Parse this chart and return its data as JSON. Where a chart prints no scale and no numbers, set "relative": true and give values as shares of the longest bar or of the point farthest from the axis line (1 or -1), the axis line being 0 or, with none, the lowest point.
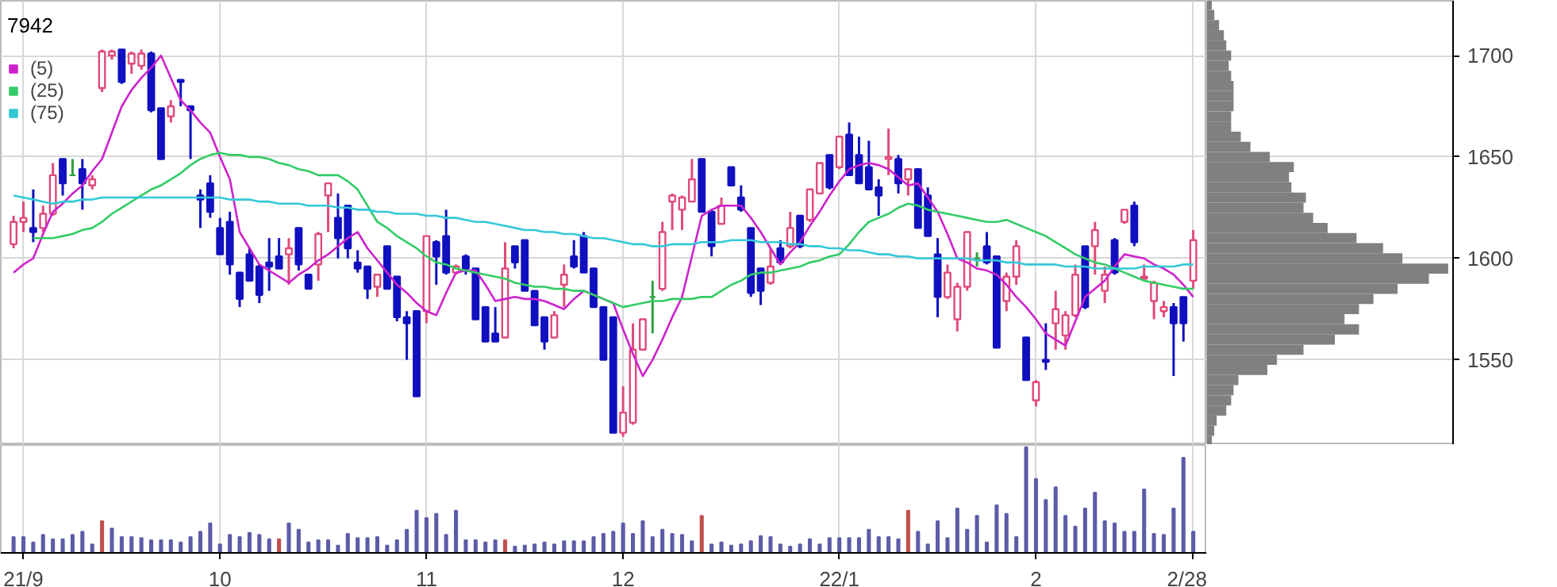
{
  "chart_data": [
    {
      "type": "candlestick",
      "title": "7942",
      "ylim": [
        1508,
        1727
      ],
      "grid": true,
      "tick_labels": false,
      "legend": "top left",
      "yticks": [
        1550,
        1600,
        1650,
        1700
      ],
      "categories": [
        null,
        null,
        null,
        null,
        null,
        null,
        null,
        null,
        null,
        null,
        null,
        null,
        null,
        null,
        null,
        null,
        null,
        null,
        null,
        null,
        null,
        null,
        null,
        null,
        null,
        null,
        null,
        null,
        null,
        null,
        null,
        null,
        null,
        null,
        null,
        null,
        null,
        null,
        null,
        null,
        null,
        null,
        null,
        null,
        null,
        null,
        null,
        null,
        null,
        null,
        null,
        null,
        null,
        null,
        null,
        null,
        null,
        null,
        null,
        null,
        null,
        null,
        null,
        null,
        null,
        null,
        null,
        null,
        null,
        null,
        null,
        null,
        null,
        null,
        null,
        null,
        null,
        null,
        null,
        null,
        null,
        null,
        null,
        null,
        null,
        null,
        null,
        null,
        null,
        null,
        null,
        null,
        null,
        null,
        null,
        null,
        null,
        null,
        null,
        null,
        null,
        null,
        null,
        null,
        null,
        null,
        null,
        null,
        null,
        null,
        null,
        null,
        null,
        null,
        null,
        null,
        null,
        null,
        null,
        null,
        null
      ],
      "ohlc": [
        [
          1607,
          1621,
          1605,
          1618
        ],
        [
          1618,
          1628,
          1613,
          1620
        ],
        [
          1615,
          1634,
          1608,
          1613
        ],
        [
          1615,
          1626,
          1613,
          1622
        ],
        [
          1622,
          1647,
          1621,
          1641
        ],
        [
          1649,
          1649,
          1631,
          1637
        ],
        [
          1641,
          1649,
          1641,
          1641
        ],
        [
          1644,
          1649,
          1624,
          1637
        ],
        [
          1636,
          1641,
          1634,
          1639
        ],
        [
          1684,
          1703,
          1682,
          1702
        ],
        [
          1700,
          1703,
          1698,
          1702
        ],
        [
          1703,
          1703,
          1686,
          1687
        ],
        [
          1696,
          1702,
          1691,
          1701
        ],
        [
          1695,
          1703,
          1693,
          1701
        ],
        [
          1701,
          1702,
          1672,
          1673
        ],
        [
          1674,
          1674,
          1649,
          1649
        ],
        [
          1670,
          1678,
          1667,
          1675
        ],
        [
          1688,
          1688,
          1675,
          1687
        ],
        [
          1675,
          1675,
          1649,
          1673
        ],
        [
          1631,
          1634,
          1615,
          1629
        ],
        [
          1637,
          1641,
          1620,
          1623
        ],
        [
          1615,
          1620,
          1602,
          1602
        ],
        [
          1618,
          1623,
          1592,
          1597
        ],
        [
          1593,
          1593,
          1576,
          1580
        ],
        [
          1602,
          1605,
          1589,
          1589
        ],
        [
          1596,
          1597,
          1578,
          1582
        ],
        [
          1598,
          1610,
          1584,
          1596
        ],
        [
          1601,
          1610,
          1595,
          1595
        ],
        [
          1602,
          1610,
          1587,
          1605
        ],
        [
          1615,
          1615,
          1594,
          1597
        ],
        [
          1592,
          1592,
          1585,
          1585
        ],
        [
          1597,
          1613,
          1589,
          1612
        ],
        [
          1631,
          1637,
          1613,
          1637
        ],
        [
          1620,
          1632,
          1600,
          1610
        ],
        [
          1626,
          1626,
          1600,
          1605
        ],
        [
          1598,
          1604,
          1593,
          1595
        ],
        [
          1596,
          1596,
          1580,
          1585
        ],
        [
          1586,
          1592,
          1581,
          1592
        ],
        [
          1606,
          1606,
          1585,
          1585
        ],
        [
          1591,
          1591,
          1569,
          1571
        ],
        [
          1571,
          1574,
          1550,
          1568
        ],
        [
          1574,
          1574,
          1532,
          1532
        ],
        [
          1574,
          1611,
          1568,
          1611
        ],
        [
          1608,
          1609,
          1587,
          1601
        ],
        [
          1611,
          1624,
          1592,
          1593
        ],
        [
          1593,
          1597,
          1592,
          1596
        ],
        [
          1601,
          1602,
          1592,
          1595
        ],
        [
          1595,
          1595,
          1570,
          1570
        ],
        [
          1576,
          1576,
          1559,
          1559
        ],
        [
          1563,
          1576,
          1559,
          1559
        ],
        [
          1561,
          1608,
          1561,
          1595
        ],
        [
          1606,
          1606,
          1595,
          1598
        ],
        [
          1609,
          1609,
          1584,
          1584
        ],
        [
          1584,
          1584,
          1567,
          1567
        ],
        [
          1571,
          1571,
          1555,
          1559
        ],
        [
          1561,
          1574,
          1561,
          1572
        ],
        [
          1587,
          1597,
          1576,
          1592
        ],
        [
          1601,
          1609,
          1595,
          1596
        ],
        [
          1611,
          1613,
          1593,
          1593
        ],
        [
          1595,
          1595,
          1576,
          1576
        ],
        [
          1576,
          1576,
          1550,
          1550
        ],
        [
          1571,
          1571,
          1514,
          1514
        ],
        [
          1514,
          1537,
          1512,
          1524
        ],
        [
          1519,
          1568,
          1518,
          1555
        ],
        [
          1555,
          1570,
          1555,
          1570
        ],
        [
          1581,
          1589,
          1563,
          1581
        ],
        [
          1585,
          1618,
          1584,
          1613
        ],
        [
          1628,
          1632,
          1614,
          1631
        ],
        [
          1624,
          1631,
          1614,
          1630
        ],
        [
          1628,
          1649,
          1628,
          1639
        ],
        [
          1649,
          1649,
          1623,
          1623
        ],
        [
          1623,
          1624,
          1601,
          1606
        ],
        [
          1617,
          1630,
          1617,
          1626
        ],
        [
          1645,
          1645,
          1636,
          1636
        ],
        [
          1630,
          1636,
          1623,
          1624
        ],
        [
          1615,
          1615,
          1581,
          1583
        ],
        [
          1595,
          1595,
          1577,
          1584
        ],
        [
          1588,
          1605,
          1587,
          1596
        ],
        [
          1605,
          1609,
          1597,
          1598
        ],
        [
          1606,
          1623,
          1605,
          1615
        ],
        [
          1621,
          1621,
          1605,
          1606
        ],
        [
          1619,
          1634,
          1618,
          1634
        ],
        [
          1632,
          1647,
          1632,
          1647
        ],
        [
          1651,
          1651,
          1634,
          1635
        ],
        [
          1645,
          1660,
          1644,
          1660
        ],
        [
          1661,
          1667,
          1641,
          1641
        ],
        [
          1651,
          1660,
          1637,
          1637
        ],
        [
          1645,
          1658,
          1634,
          1634
        ],
        [
          1635,
          1639,
          1621,
          1631
        ],
        [
          1649,
          1664,
          1641,
          1650
        ],
        [
          1649,
          1651,
          1632,
          1637
        ],
        [
          1639,
          1644,
          1631,
          1644
        ],
        [
          1644,
          1644,
          1615,
          1615
        ],
        [
          1631,
          1635,
          1611,
          1611
        ],
        [
          1602,
          1610,
          1571,
          1581
        ],
        [
          1581,
          1597,
          1580,
          1593
        ],
        [
          1570,
          1588,
          1564,
          1586
        ],
        [
          1586,
          1613,
          1584,
          1613
        ],
        [
          1600,
          1603,
          1596,
          1600
        ],
        [
          1606,
          1613,
          1597,
          1598
        ],
        [
          1601,
          1601,
          1556,
          1556
        ],
        [
          1579,
          1593,
          1574,
          1591
        ],
        [
          1591,
          1609,
          1587,
          1606
        ],
        [
          1561,
          1561,
          1540,
          1540
        ],
        [
          1530,
          1540,
          1527,
          1539
        ],
        [
          1550,
          1568,
          1545,
          1549
        ],
        [
          1568,
          1584,
          1555,
          1575
        ],
        [
          1562,
          1574,
          1555,
          1572
        ],
        [
          1572,
          1597,
          1571,
          1592
        ],
        [
          1606,
          1606,
          1575,
          1576
        ],
        [
          1606,
          1618,
          1592,
          1614
        ],
        [
          1584,
          1596,
          1578,
          1592
        ],
        [
          1609,
          1610,
          1592,
          1593
        ],
        [
          1618,
          1624,
          1617,
          1624
        ],
        [
          1626,
          1628,
          1606,
          1608
        ],
        [
          1590,
          1597,
          1589,
          1591
        ],
        [
          1579,
          1589,
          1570,
          1588
        ],
        [
          1574,
          1579,
          1571,
          1576
        ],
        [
          1576,
          1578,
          1542,
          1568
        ],
        [
          1581,
          1581,
          1559,
          1568
        ],
        [
          1589,
          1614,
          1585,
          1609
        ]
      ],
      "colors": [
        "#e04a78",
        "#e04a78",
        "#1010c0",
        "#e04a78",
        "#e04a78",
        "#1010c0",
        "#30a040",
        "#1010c0",
        "#e04a78",
        "#e04a78",
        "#e04a78",
        "#1010c0",
        "#e04a78",
        "#e04a78",
        "#1010c0",
        "#1010c0",
        "#e04a78",
        "#1010c0",
        "#1010c0",
        "#1010c0",
        "#1010c0",
        "#1010c0",
        "#1010c0",
        "#1010c0",
        "#1010c0",
        "#1010c0",
        "#1010c0",
        "#1010c0",
        "#e04a78",
        "#1010c0",
        "#1010c0",
        "#e04a78",
        "#e04a78",
        "#1010c0",
        "#1010c0",
        "#1010c0",
        "#1010c0",
        "#e04a78",
        "#1010c0",
        "#1010c0",
        "#1010c0",
        "#1010c0",
        "#e04a78",
        "#1010c0",
        "#1010c0",
        "#e04a78",
        "#1010c0",
        "#1010c0",
        "#1010c0",
        "#1010c0",
        "#e04a78",
        "#1010c0",
        "#1010c0",
        "#1010c0",
        "#1010c0",
        "#e04a78",
        "#e04a78",
        "#1010c0",
        "#1010c0",
        "#1010c0",
        "#1010c0",
        "#1010c0",
        "#e04a78",
        "#e04a78",
        "#e04a78",
        "#30a040",
        "#e04a78",
        "#e04a78",
        "#e04a78",
        "#e04a78",
        "#1010c0",
        "#1010c0",
        "#e04a78",
        "#1010c0",
        "#1010c0",
        "#1010c0",
        "#1010c0",
        "#e04a78",
        "#1010c0",
        "#e04a78",
        "#1010c0",
        "#e04a78",
        "#e04a78",
        "#1010c0",
        "#e04a78",
        "#1010c0",
        "#1010c0",
        "#1010c0",
        "#1010c0",
        "#e04a78",
        "#1010c0",
        "#e04a78",
        "#1010c0",
        "#1010c0",
        "#1010c0",
        "#e04a78",
        "#e04a78",
        "#e04a78",
        "#30a040",
        "#1010c0",
        "#1010c0",
        "#e04a78",
        "#e04a78",
        "#1010c0",
        "#e04a78",
        "#1010c0",
        "#e04a78",
        "#e04a78",
        "#e04a78",
        "#1010c0",
        "#e04a78",
        "#e04a78",
        "#1010c0",
        "#e04a78",
        "#1010c0",
        "#e04a78",
        "#e04a78",
        "#e04a78",
        "#1010c0",
        "#1010c0",
        "#e04a78"
      ],
      "series": [
        {
          "type": "line",
          "name": "(5)",
          "color": "#cc22cc",
          "values": [
            1593,
            1597,
            1600,
            1612,
            1623,
            1627,
            1632,
            1636,
            1643,
            1649,
            1662,
            1675,
            1683,
            1689,
            1694,
            1700,
            1689,
            1678,
            1673,
            1667,
            1662,
            1650,
            1639,
            1613,
            1605,
            1597,
            1594,
            1591,
            1588,
            1592,
            1595,
            1599,
            1602,
            1606,
            1610,
            1613,
            1605,
            1599,
            1593,
            1587,
            1583,
            1578,
            1574,
            1572,
            1583,
            1593,
            1594,
            1594,
            1587,
            1579,
            1580,
            1581,
            1580,
            1580,
            1579,
            1577,
            1575,
            1580,
            1584,
            1582,
            1580,
            1578,
            1565,
            1553,
            1542,
            1550,
            1560,
            1571,
            1581,
            1601,
            1621,
            1624,
            1626,
            1626,
            1626,
            1620,
            1613,
            1605,
            1597,
            1603,
            1608,
            1616,
            1623,
            1631,
            1638,
            1644,
            1646,
            1647,
            1646,
            1644,
            1640,
            1636,
            1637,
            1630,
            1623,
            1612,
            1600,
            1598,
            1595,
            1594,
            1592,
            1587,
            1581,
            1576,
            1570,
            1563,
            1560,
            1557,
            1569,
            1581,
            1585,
            1589,
            1596,
            1602,
            1601,
            1600,
            1597,
            1595,
            1592,
            1587,
            1581
          ]
        },
        {
          "type": "line",
          "name": "(25)",
          "color": "#33cc66",
          "values": [
            null,
            null,
            1610,
            1610,
            1610,
            1611,
            1612,
            1614,
            1615,
            1618,
            1622,
            1625,
            1628,
            1631,
            1634,
            1636,
            1639,
            1642,
            1646,
            1649,
            1651,
            1652,
            1651,
            1651,
            1650,
            1650,
            1649,
            1647,
            1646,
            1644,
            1643,
            1641,
            1641,
            1641,
            1638,
            1634,
            1626,
            1618,
            1615,
            1611,
            1608,
            1605,
            1601,
            1598,
            1597,
            1595,
            1594,
            1593,
            1592,
            1591,
            1590,
            1588,
            1587,
            1586,
            1586,
            1585,
            1585,
            1584,
            1584,
            1582,
            1580,
            1578,
            1576,
            1577,
            1578,
            1579,
            1579,
            1580,
            1580,
            1580,
            1581,
            1581,
            1584,
            1587,
            1589,
            1592,
            1593,
            1593,
            1594,
            1595,
            1596,
            1598,
            1599,
            1601,
            1602,
            1607,
            1613,
            1618,
            1620,
            1622,
            1625,
            1627,
            1626,
            1624,
            1623,
            1622,
            1621,
            1620,
            1619,
            1618,
            1618,
            1619,
            1617,
            1615,
            1613,
            1611,
            1608,
            1605,
            1602,
            1600,
            1598,
            1597,
            1595,
            1593,
            1591,
            1589,
            1588,
            1587,
            1586,
            1585,
            1585
          ]
        },
        {
          "type": "line",
          "name": "(75)",
          "color": "#33c8d8",
          "values": [
            1631,
            1630,
            1629,
            1628,
            1627,
            1628,
            1628,
            1629,
            1629,
            1630,
            1630,
            1630,
            1630,
            1630,
            1630,
            1630,
            1630,
            1630,
            1630,
            1630,
            1630,
            1630,
            1629,
            1629,
            1629,
            1628,
            1628,
            1627,
            1627,
            1627,
            1626,
            1626,
            1626,
            1625,
            1625,
            1624,
            1624,
            1623,
            1623,
            1622,
            1622,
            1622,
            1621,
            1621,
            1620,
            1620,
            1619,
            1618,
            1618,
            1617,
            1616,
            1615,
            1614,
            1614,
            1613,
            1613,
            1612,
            1612,
            1611,
            1610,
            1610,
            1609,
            1608,
            1607,
            1607,
            1606,
            1606,
            1607,
            1607,
            1607,
            1608,
            1608,
            1608,
            1609,
            1609,
            1609,
            1608,
            1608,
            1608,
            1607,
            1607,
            1606,
            1606,
            1605,
            1605,
            1604,
            1604,
            1603,
            1602,
            1602,
            1601,
            1601,
            1600,
            1600,
            1600,
            1600,
            1600,
            1600,
            1599,
            1599,
            1599,
            1598,
            1598,
            1597,
            1597,
            1597,
            1597,
            1596,
            1596,
            1596,
            1595,
            1595,
            1595,
            1595,
            1595,
            1596,
            1596,
            1596,
            1596,
            1597,
            1597
          ]
        }
      ]
    },
    {
      "type": "bar",
      "relative": true,
      "grid": "x",
      "tick_labels": "x",
      "categories": [
        null,
        "21/9",
        null,
        null,
        null,
        null,
        null,
        null,
        null,
        null,
        null,
        null,
        null,
        null,
        null,
        null,
        null,
        null,
        null,
        null,
        null,
        "10",
        null,
        null,
        null,
        null,
        null,
        null,
        null,
        null,
        null,
        null,
        null,
        null,
        null,
        null,
        null,
        null,
        null,
        null,
        null,
        null,
        "11",
        null,
        null,
        null,
        null,
        null,
        null,
        null,
        null,
        null,
        null,
        null,
        null,
        null,
        null,
        null,
        null,
        null,
        null,
        null,
        "12",
        null,
        null,
        null,
        null,
        null,
        null,
        null,
        null,
        null,
        null,
        null,
        null,
        null,
        null,
        null,
        null,
        null,
        null,
        null,
        null,
        null,
        "22/1",
        null,
        null,
        null,
        null,
        null,
        null,
        null,
        null,
        null,
        null,
        null,
        null,
        null,
        null,
        null,
        null,
        null,
        null,
        null,
        "2",
        null,
        null,
        null,
        null,
        null,
        null,
        null,
        null,
        null,
        null,
        null,
        null,
        null,
        null,
        null,
        "2/28"
      ],
      "values": [
        0.15,
        0.15,
        0.1,
        0.17,
        0.13,
        0.13,
        0.17,
        0.2,
        0.08,
        0.3,
        0.23,
        0.15,
        0.15,
        0.14,
        0.12,
        0.12,
        0.12,
        0.1,
        0.15,
        0.2,
        0.28,
        0.08,
        0.17,
        0.15,
        0.19,
        0.17,
        0.13,
        0.13,
        0.28,
        0.22,
        0.1,
        0.12,
        0.12,
        0.07,
        0.18,
        0.14,
        0.14,
        0.15,
        0.07,
        0.12,
        0.22,
        0.4,
        0.33,
        0.37,
        0.17,
        0.4,
        0.12,
        0.12,
        0.1,
        0.12,
        0.12,
        0.06,
        0.07,
        0.08,
        0.1,
        0.08,
        0.11,
        0.11,
        0.11,
        0.15,
        0.18,
        0.2,
        0.28,
        0.18,
        0.3,
        0.15,
        0.22,
        0.18,
        0.17,
        0.11,
        0.35,
        0.08,
        0.1,
        0.07,
        0.08,
        0.11,
        0.16,
        0.15,
        0.08,
        0.06,
        0.08,
        0.13,
        0.08,
        0.14,
        0.14,
        0.14,
        0.14,
        0.22,
        0.15,
        0.15,
        0.13,
        0.4,
        0.2,
        0.08,
        0.3,
        0.14,
        0.42,
        0.22,
        0.35,
        0.1,
        0.45,
        0.37,
        0.15,
        1.0,
        0.7,
        0.5,
        0.62,
        0.35,
        0.25,
        0.42,
        0.57,
        0.3,
        0.28,
        0.2,
        0.2,
        0.6,
        0.18,
        0.17,
        0.42,
        0.9,
        0.2
      ],
      "colors": [
        "#5c5ca8",
        "#5c5ca8",
        "#5c5ca8",
        "#5c5ca8",
        "#5c5ca8",
        "#5c5ca8",
        "#5c5ca8",
        "#5c5ca8",
        "#5c5ca8",
        "#c0504d",
        "#5c5ca8",
        "#5c5ca8",
        "#5c5ca8",
        "#5c5ca8",
        "#5c5ca8",
        "#5c5ca8",
        "#5c5ca8",
        "#5c5ca8",
        "#5c5ca8",
        "#5c5ca8",
        "#5c5ca8",
        "#5c5ca8",
        "#5c5ca8",
        "#5c5ca8",
        "#5c5ca8",
        "#5c5ca8",
        "#5c5ca8",
        "#c0504d",
        "#5c5ca8",
        "#5c5ca8",
        "#5c5ca8",
        "#5c5ca8",
        "#5c5ca8",
        "#5c5ca8",
        "#5c5ca8",
        "#5c5ca8",
        "#5c5ca8",
        "#5c5ca8",
        "#5c5ca8",
        "#5c5ca8",
        "#5c5ca8",
        "#5c5ca8",
        "#5c5ca8",
        "#5c5ca8",
        "#5c5ca8",
        "#5c5ca8",
        "#5c5ca8",
        "#5c5ca8",
        "#5c5ca8",
        "#5c5ca8",
        "#c0504d",
        "#5c5ca8",
        "#5c5ca8",
        "#5c5ca8",
        "#5c5ca8",
        "#5c5ca8",
        "#5c5ca8",
        "#5c5ca8",
        "#5c5ca8",
        "#5c5ca8",
        "#5c5ca8",
        "#5c5ca8",
        "#5c5ca8",
        "#5c5ca8",
        "#5c5ca8",
        "#5c5ca8",
        "#5c5ca8",
        "#5c5ca8",
        "#5c5ca8",
        "#5c5ca8",
        "#c0504d",
        "#5c5ca8",
        "#5c5ca8",
        "#5c5ca8",
        "#5c5ca8",
        "#5c5ca8",
        "#5c5ca8",
        "#5c5ca8",
        "#5c5ca8",
        "#5c5ca8",
        "#5c5ca8",
        "#5c5ca8",
        "#5c5ca8",
        "#5c5ca8",
        "#5c5ca8",
        "#5c5ca8",
        "#5c5ca8",
        "#5c5ca8",
        "#5c5ca8",
        "#5c5ca8",
        "#5c5ca8",
        "#c0504d",
        "#5c5ca8",
        "#5c5ca8",
        "#5c5ca8",
        "#5c5ca8",
        "#5c5ca8",
        "#5c5ca8",
        "#5c5ca8",
        "#5c5ca8",
        "#5c5ca8",
        "#5c5ca8",
        "#5c5ca8",
        "#5c5ca8",
        "#5c5ca8",
        "#5c5ca8",
        "#5c5ca8",
        "#5c5ca8",
        "#5c5ca8",
        "#5c5ca8",
        "#5c5ca8",
        "#5c5ca8",
        "#5c5ca8",
        "#5c5ca8",
        "#5c5ca8",
        "#5c5ca8",
        "#5c5ca8",
        "#5c5ca8",
        "#5c5ca8",
        "#5c5ca8",
        "#5c5ca8"
      ]
    },
    {
      "type": "bar",
      "orientation": "horizontal",
      "relative": true,
      "grid": "y",
      "tick_labels": "y",
      "color": "#808080",
      "ylim": [
        1508,
        1727
      ],
      "yticks": [
        1550,
        1600,
        1650,
        1700
      ],
      "x": [
        1725,
        1720,
        1715,
        1710,
        1705,
        1700,
        1695,
        1690,
        1685,
        1680,
        1675,
        1670,
        1665,
        1660,
        1655,
        1650,
        1645,
        1640,
        1635,
        1630,
        1625,
        1620,
        1615,
        1610,
        1605,
        1600,
        1595,
        1590,
        1585,
        1580,
        1575,
        1570,
        1565,
        1560,
        1555,
        1550,
        1545,
        1540,
        1535,
        1530,
        1525,
        1520,
        1515,
        1510
      ],
      "values": [
        0.02,
        0.03,
        0.05,
        0.07,
        0.08,
        0.1,
        0.09,
        0.1,
        0.11,
        0.11,
        0.11,
        0.1,
        0.1,
        0.14,
        0.18,
        0.26,
        0.36,
        0.34,
        0.35,
        0.41,
        0.4,
        0.44,
        0.5,
        0.62,
        0.73,
        0.81,
        1.0,
        0.92,
        0.79,
        0.69,
        0.63,
        0.57,
        0.63,
        0.53,
        0.4,
        0.29,
        0.25,
        0.13,
        0.11,
        0.1,
        0.08,
        0.04,
        0.03,
        0.02
      ]
    }
  ]
}
